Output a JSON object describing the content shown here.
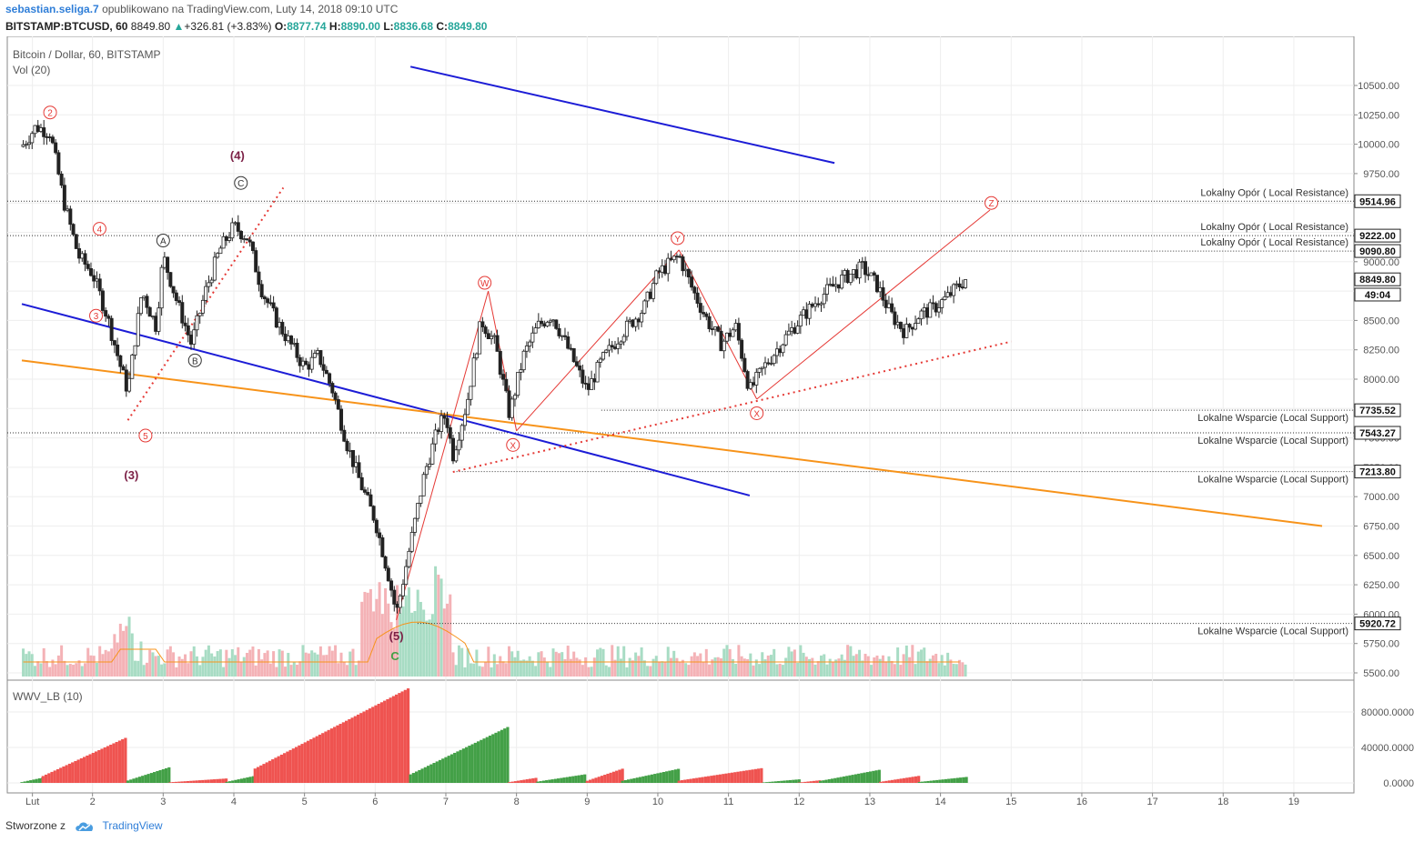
{
  "header": {
    "author": "sebastian.seliga.7",
    "published": "opublikowano na TradingView.com, Luty 14, 2018 09:10 UTC"
  },
  "ticker": {
    "symbol": "BITSTAMP:BTCUSD, 60",
    "last": "8849.80",
    "change": "+326.81 (+3.83%)",
    "o_label": "O:",
    "o": "8877.74",
    "h_label": "H:",
    "h": "8890.00",
    "l_label": "L:",
    "l": "8836.68",
    "c_label": "C:",
    "c": "8849.80"
  },
  "footer": {
    "made_with": "Stworzone z",
    "brand": "TradingView"
  },
  "chart_data": {
    "type": "candlestick",
    "title": "Bitcoin / Dollar, 60, BITSTAMP",
    "volume_label": "Vol (20)",
    "indicator_label": "WWV_LB (10)",
    "x_ticks": [
      "Lut",
      "2",
      "3",
      "4",
      "5",
      "6",
      "7",
      "8",
      "9",
      "10",
      "11",
      "12",
      "13",
      "14",
      "15",
      "16",
      "17",
      "18",
      "19"
    ],
    "y_ticks": [
      "10500.00",
      "10250.00",
      "10000.00",
      "9750.00",
      "9500.00",
      "9250.00",
      "9000.00",
      "8750.00",
      "8500.00",
      "8250.00",
      "8000.00",
      "7750.00",
      "7500.00",
      "7250.00",
      "7000.00",
      "6750.00",
      "6500.00",
      "6250.00",
      "6000.00",
      "5750.00",
      "5500.00"
    ],
    "ylim": [
      5450,
      10650
    ],
    "indicator_ticks": [
      "80000.0000",
      "40000.0000",
      "0.0000"
    ],
    "price_path": [
      [
        1,
        9980
      ],
      [
        1.2,
        10150
      ],
      [
        1.4,
        10100
      ],
      [
        1.6,
        9500
      ],
      [
        1.8,
        9050
      ],
      [
        2,
        8900
      ],
      [
        2.2,
        8550
      ],
      [
        2.4,
        8100
      ],
      [
        2.5,
        7900
      ],
      [
        2.7,
        8750
      ],
      [
        2.9,
        8450
      ],
      [
        3,
        9050
      ],
      [
        3.2,
        8650
      ],
      [
        3.4,
        8300
      ],
      [
        3.6,
        8750
      ],
      [
        3.8,
        9100
      ],
      [
        4,
        9300
      ],
      [
        4.2,
        9200
      ],
      [
        4.4,
        8750
      ],
      [
        4.6,
        8500
      ],
      [
        4.8,
        8300
      ],
      [
        5,
        8100
      ],
      [
        5.2,
        8200
      ],
      [
        5.4,
        7900
      ],
      [
        5.6,
        7450
      ],
      [
        5.8,
        7100
      ],
      [
        6,
        6800
      ],
      [
        6.2,
        6300
      ],
      [
        6.3,
        6000
      ],
      [
        6.5,
        6600
      ],
      [
        6.7,
        7200
      ],
      [
        6.9,
        7600
      ],
      [
        7,
        7700
      ],
      [
        7.1,
        7350
      ],
      [
        7.3,
        7800
      ],
      [
        7.5,
        8500
      ],
      [
        7.7,
        8300
      ],
      [
        7.9,
        7700
      ],
      [
        8.1,
        8200
      ],
      [
        8.3,
        8450
      ],
      [
        8.5,
        8550
      ],
      [
        8.7,
        8300
      ],
      [
        9,
        7900
      ],
      [
        9.2,
        8150
      ],
      [
        9.5,
        8400
      ],
      [
        9.8,
        8600
      ],
      [
        10,
        8900
      ],
      [
        10.3,
        9050
      ],
      [
        10.5,
        8750
      ],
      [
        10.7,
        8500
      ],
      [
        10.9,
        8300
      ],
      [
        11.1,
        8450
      ],
      [
        11.3,
        7900
      ],
      [
        11.5,
        8100
      ],
      [
        11.8,
        8350
      ],
      [
        12,
        8500
      ],
      [
        12.3,
        8700
      ],
      [
        12.6,
        8850
      ],
      [
        12.9,
        8950
      ],
      [
        13.1,
        8800
      ],
      [
        13.3,
        8550
      ],
      [
        13.5,
        8400
      ],
      [
        13.7,
        8550
      ],
      [
        13.9,
        8600
      ],
      [
        14.1,
        8700
      ],
      [
        14.35,
        8849.8
      ]
    ],
    "horizontal_levels": [
      {
        "value": 9514.96,
        "label": "Lokalny Opór ( Local Resistance)"
      },
      {
        "value": 9222.0,
        "label": "Lokalny Opór ( Local Resistance)"
      },
      {
        "value": 9090.8,
        "label": "Lokalny Opór ( Local Resistance)"
      },
      {
        "value": 7735.52,
        "label": "Lokalne Wsparcie (Local Support)"
      },
      {
        "value": 7543.27,
        "label": "Lokalne Wsparcie (Local Support)"
      },
      {
        "value": 7213.8,
        "label": "Lokalne Wsparcie (Local Support)"
      },
      {
        "value": 5920.72,
        "label": "Lokalne Wsparcie (Local Support)"
      }
    ],
    "price_badges": [
      {
        "value": 9514.96,
        "text": "9514.96"
      },
      {
        "value": 9222.0,
        "text": "9222.00"
      },
      {
        "value": 9090.8,
        "text": "9090.80"
      },
      {
        "value": 8849.8,
        "text": "8849.80"
      },
      {
        "value": 8720.0,
        "text": "49:04"
      },
      {
        "value": 7735.52,
        "text": "7735.52"
      },
      {
        "value": 7543.27,
        "text": "7543.27"
      },
      {
        "value": 7213.8,
        "text": "7213.80"
      },
      {
        "value": 5920.72,
        "text": "5920.72"
      }
    ],
    "trend_lines": [
      {
        "color": "#1c1cd6",
        "style": "solid",
        "from": [
          6.5,
          10660
        ],
        "to": [
          12.5,
          9840
        ]
      },
      {
        "color": "#1c1cd6",
        "style": "solid",
        "from": [
          1,
          8640
        ],
        "to": [
          11.3,
          7010
        ]
      },
      {
        "color": "#f7931a",
        "style": "solid",
        "from": [
          1,
          8160
        ],
        "to": [
          19.4,
          6750
        ]
      },
      {
        "color": "#e53935",
        "style": "dotted",
        "from": [
          2.5,
          7650
        ],
        "to": [
          4.7,
          9630
        ]
      },
      {
        "color": "#e53935",
        "style": "dotted",
        "from": [
          7.1,
          7210
        ],
        "to": [
          15,
          8320
        ]
      },
      {
        "color": "#e53935",
        "style": "solid",
        "from": [
          6.3,
          5950
        ],
        "to": [
          7.6,
          8750
        ]
      },
      {
        "color": "#e53935",
        "style": "solid",
        "from": [
          7.6,
          8750
        ],
        "to": [
          8,
          7560
        ]
      },
      {
        "color": "#e53935",
        "style": "solid",
        "from": [
          8,
          7560
        ],
        "to": [
          10.3,
          9100
        ]
      },
      {
        "color": "#e53935",
        "style": "solid",
        "from": [
          10.3,
          9100
        ],
        "to": [
          11.4,
          7830
        ]
      },
      {
        "color": "#e53935",
        "style": "solid",
        "from": [
          11.4,
          7830
        ],
        "to": [
          14.7,
          9440
        ]
      }
    ],
    "wave_labels": [
      {
        "text": "2",
        "x": 1.4,
        "y": 10270,
        "color": "#e53935",
        "circle": true
      },
      {
        "text": "4",
        "x": 2.1,
        "y": 9280,
        "color": "#e53935",
        "circle": true
      },
      {
        "text": "3",
        "x": 2.05,
        "y": 8540,
        "color": "#e53935",
        "circle": true
      },
      {
        "text": "5",
        "x": 2.75,
        "y": 7520,
        "color": "#e53935",
        "circle": true
      },
      {
        "text": "A",
        "x": 3.0,
        "y": 9180,
        "color": "#333333",
        "circle": true
      },
      {
        "text": "B",
        "x": 3.45,
        "y": 8160,
        "color": "#333333",
        "circle": true
      },
      {
        "text": "C",
        "x": 4.1,
        "y": 9670,
        "color": "#333333",
        "circle": true
      },
      {
        "text": "(4)",
        "x": 4.05,
        "y": 9900,
        "color": "#7b1f45",
        "circle": false
      },
      {
        "text": "(3)",
        "x": 2.55,
        "y": 7180,
        "color": "#7b1f45",
        "circle": false
      },
      {
        "text": "(5)",
        "x": 6.3,
        "y": 5810,
        "color": "#7b1f45",
        "circle": false
      },
      {
        "text": "C",
        "x": 6.28,
        "y": 5640,
        "color": "#43a047",
        "circle": false
      },
      {
        "text": "W",
        "x": 7.55,
        "y": 8820,
        "color": "#e53935",
        "circle": true
      },
      {
        "text": "X",
        "x": 7.95,
        "y": 7440,
        "color": "#e53935",
        "circle": true
      },
      {
        "text": "Y",
        "x": 10.28,
        "y": 9200,
        "color": "#e53935",
        "circle": true
      },
      {
        "text": "X",
        "x": 11.4,
        "y": 7710,
        "color": "#e53935",
        "circle": true
      },
      {
        "text": "Z",
        "x": 14.72,
        "y": 9500,
        "color": "#e53935",
        "circle": true
      }
    ],
    "indicator_bars": [
      {
        "from": 1,
        "to": 1.3,
        "peak": 6000,
        "color": "#43a047"
      },
      {
        "from": 1.3,
        "to": 2.5,
        "peak": 52000,
        "color": "#ef5350"
      },
      {
        "from": 2.5,
        "to": 3.1,
        "peak": 18000,
        "color": "#43a047"
      },
      {
        "from": 3.1,
        "to": 3.9,
        "peak": 5000,
        "color": "#ef5350"
      },
      {
        "from": 3.9,
        "to": 4.3,
        "peak": 8000,
        "color": "#43a047"
      },
      {
        "from": 4.3,
        "to": 6.5,
        "peak": 108000,
        "color": "#ef5350"
      },
      {
        "from": 6.5,
        "to": 7.9,
        "peak": 64000,
        "color": "#43a047"
      },
      {
        "from": 7.9,
        "to": 8.3,
        "peak": 6000,
        "color": "#ef5350"
      },
      {
        "from": 8.3,
        "to": 9.0,
        "peak": 10000,
        "color": "#43a047"
      },
      {
        "from": 9.0,
        "to": 9.5,
        "peak": 16000,
        "color": "#ef5350"
      },
      {
        "from": 9.5,
        "to": 10.3,
        "peak": 16000,
        "color": "#43a047"
      },
      {
        "from": 10.3,
        "to": 11.5,
        "peak": 17000,
        "color": "#ef5350"
      },
      {
        "from": 11.5,
        "to": 12.0,
        "peak": 4000,
        "color": "#43a047"
      },
      {
        "from": 12.0,
        "to": 12.3,
        "peak": 3000,
        "color": "#ef5350"
      },
      {
        "from": 12.3,
        "to": 13.15,
        "peak": 15000,
        "color": "#43a047"
      },
      {
        "from": 13.15,
        "to": 13.7,
        "peak": 8000,
        "color": "#ef5350"
      },
      {
        "from": 13.7,
        "to": 14.4,
        "peak": 7000,
        "color": "#43a047"
      }
    ]
  }
}
